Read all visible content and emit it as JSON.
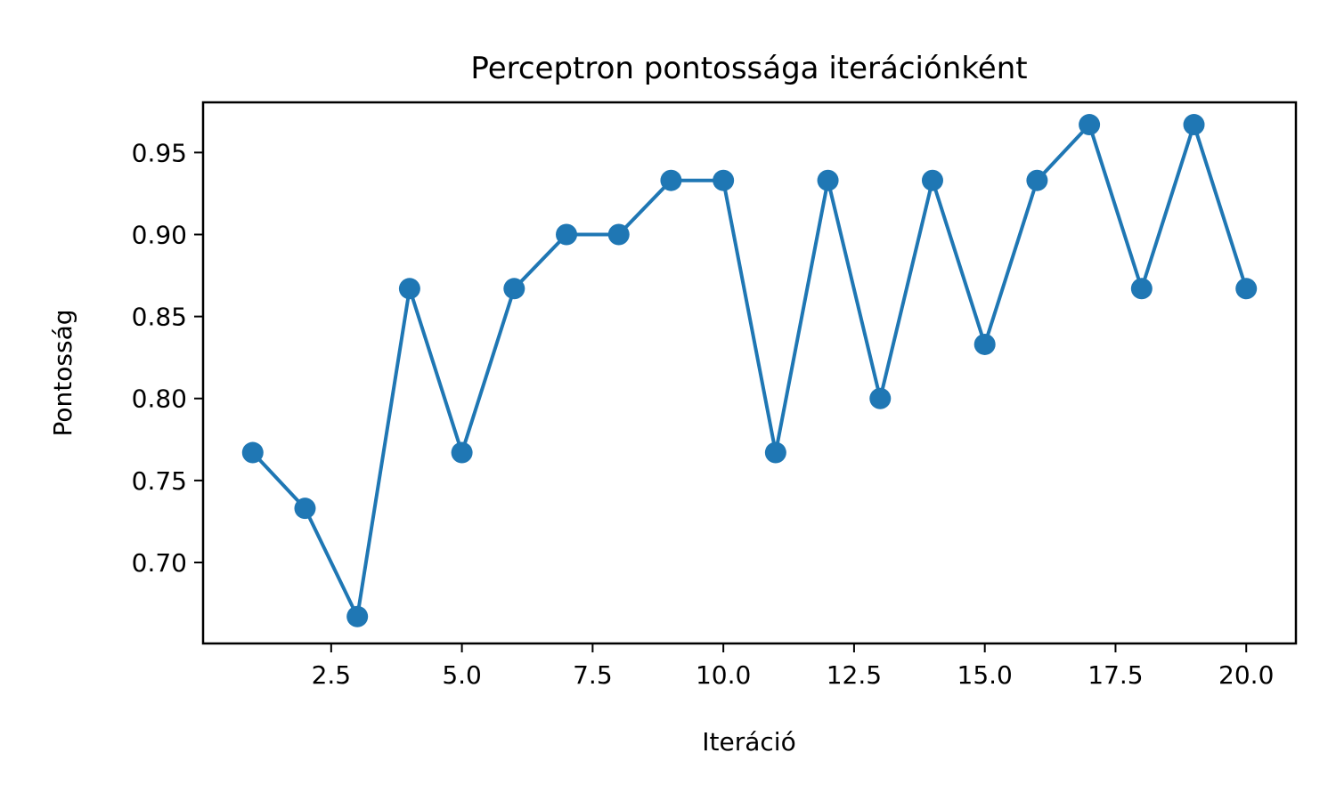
{
  "chart_data": {
    "type": "line",
    "title": "Perceptron pontossága iterációnként",
    "xlabel": "Iteráció",
    "ylabel": "Pontosság",
    "xlim": [
      0.05,
      20.95
    ],
    "ylim": [
      0.6506,
      0.9806
    ],
    "xticks": [
      2.5,
      5.0,
      7.5,
      10.0,
      12.5,
      15.0,
      17.5,
      20.0
    ],
    "xtick_labels": [
      "2.5",
      "5.0",
      "7.5",
      "10.0",
      "12.5",
      "15.0",
      "17.5",
      "20.0"
    ],
    "yticks": [
      0.7,
      0.75,
      0.8,
      0.85,
      0.9,
      0.95
    ],
    "ytick_labels": [
      "0.70",
      "0.75",
      "0.80",
      "0.85",
      "0.90",
      "0.95"
    ],
    "grid": false,
    "marker": "circle",
    "color": "#1f77b4",
    "series": [
      {
        "x": [
          1,
          2,
          3,
          4,
          5,
          6,
          7,
          8,
          9,
          10,
          11,
          12,
          13,
          14,
          15,
          16,
          17,
          18,
          19,
          20
        ],
        "y": [
          0.767,
          0.733,
          0.667,
          0.867,
          0.767,
          0.867,
          0.9,
          0.9,
          0.933,
          0.933,
          0.767,
          0.933,
          0.8,
          0.933,
          0.833,
          0.933,
          0.967,
          0.867,
          0.967,
          0.867
        ]
      }
    ]
  }
}
